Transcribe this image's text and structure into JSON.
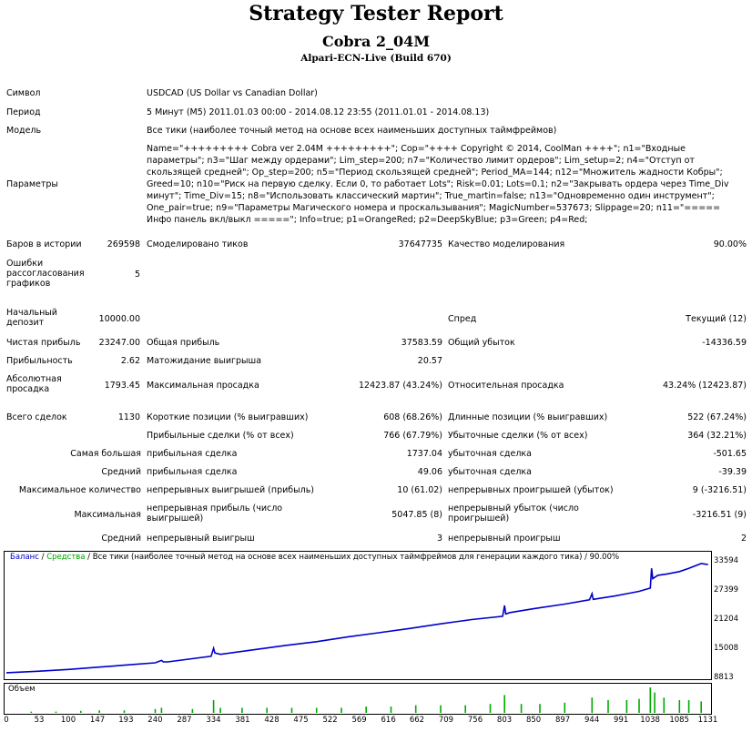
{
  "report": {
    "title": "Strategy Tester Report",
    "subtitle": "Cobra 2_04M",
    "build": "Alpari-ECN-Live (Build 670)"
  },
  "fields": {
    "symbol_label": "Символ",
    "symbol_value": "USDCAD (US Dollar vs Canadian Dollar)",
    "period_label": "Период",
    "period_value": "5 Минут (M5) 2011.01.03 00:00 - 2014.08.12 23:55 (2011.01.01 - 2014.08.13)",
    "model_label": "Модель",
    "model_value": "Все тики (наиболее точный метод на основе всех наименьших доступных таймфреймов)",
    "params_label": "Параметры",
    "params_value": "Name=\"+++++++++ Cobra ver 2.04M +++++++++\"; Cop=\"++++ Copyright © 2014, CoolMan ++++\"; n1=\"Входные параметры\"; n3=\"Шаг между ордерами\"; Lim_step=200; n7=\"Количество лимит ордеров\"; Lim_setup=2; n4=\"Отступ от скользящей средней\"; Op_step=200; n5=\"Период скользящей средней\"; Period_MA=144; n12=\"Множитель жадности Кобры\"; Greed=10; n10=\"Риск на первую сделку. Если 0, то работает Lots\"; Risk=0.01; Lots=0.1; n2=\"Закрывать ордера через Time_Div минут\"; Time_Div=15; n8=\"Использовать классический мартин\"; True_martin=false; n13=\"Одновременно один инструмент\"; One_pair=true; n9=\"Параметры Магического номера и проскальзывания\"; MagicNumber=537673; Slippage=20; n11=\"===== Инфо панель вкл/выкл =====\"; Info=true; p1=OrangeRed; p2=DeepSkyBlue; p3=Green; p4=Red;"
  },
  "stats": {
    "bars_label": "Баров в истории",
    "bars_value": "269598",
    "ticks_label": "Смоделировано тиков",
    "ticks_value": "37647735",
    "quality_label": "Качество моделирования",
    "quality_value": "90.00%",
    "errors_label": "Ошибки рассогласования графиков",
    "errors_value": "5",
    "deposit_label": "Начальный депозит",
    "deposit_value": "10000.00",
    "spread_label": "Спред",
    "spread_value": "Текущий (12)",
    "netprofit_label": "Чистая прибыль",
    "netprofit_value": "23247.00",
    "grossprofit_label": "Общая прибыль",
    "grossprofit_value": "37583.59",
    "grossloss_label": "Общий убыток",
    "grossloss_value": "-14336.59",
    "pf_label": "Прибыльность",
    "pf_value": "2.62",
    "payoff_label": "Матожидание выигрыша",
    "payoff_value": "20.57",
    "absdd_label": "Абсолютная просадка",
    "absdd_value": "1793.45",
    "maxdd_label": "Максимальная просадка",
    "maxdd_value": "12423.87 (43.24%)",
    "reldd_label": "Относительная просадка",
    "reldd_value": "43.24% (12423.87)",
    "trades_label": "Всего сделок",
    "trades_value": "1130",
    "short_label": "Короткие позиции (% выигравших)",
    "short_value": "608 (68.26%)",
    "long_label": "Длинные позиции (% выигравших)",
    "long_value": "522 (67.24%)",
    "profittrades_label": "Прибыльные сделки (% от всех)",
    "profittrades_value": "766 (67.79%)",
    "losstrades_label": "Убыточные сделки (% от всех)",
    "losstrades_value": "364 (32.21%)",
    "largest_label": "Самая большая",
    "largest_profit_label": "прибыльная сделка",
    "largest_profit_value": "1737.04",
    "largest_loss_label": "убыточная сделка",
    "largest_loss_value": "-501.65",
    "average_label": "Средний",
    "average_profit_label": "прибыльная сделка",
    "average_profit_value": "49.06",
    "average_loss_label": "убыточная сделка",
    "average_loss_value": "-39.39",
    "maxcount_label": "Максимальное количество",
    "maxcons_wins_label": "непрерывных выигрышей (прибыль)",
    "maxcons_wins_value": "10 (61.02)",
    "maxcons_losses_label": "непрерывных проигрышей (убыток)",
    "maxcons_losses_value": "9 (-3216.51)",
    "maximal_label": "Максимальная",
    "maxcons_profit_label": "непрерывная прибыль (число выигрышей)",
    "maxcons_profit_value": "5047.85 (8)",
    "maxcons_loss_label": "непрерывный убыток (число проигрышей)",
    "maxcons_loss_value": "-3216.51 (9)",
    "avgcons_label": "Средний",
    "avgcons_wins_label": "непрерывный выигрыш",
    "avgcons_wins_value": "3",
    "avgcons_losses_label": "непрерывный проигрыш",
    "avgcons_losses_value": "2"
  },
  "chart": {
    "legend_balance": "Баланс",
    "legend_sep1": " / ",
    "legend_equity": "Средства",
    "legend_rest": " / Все тики (наиболее точный метод на основе всех наименьших доступных таймфреймов для генерации каждого тика) / 90.00%",
    "volume_label": "Объем",
    "colors": {
      "balance": "#0000cc",
      "equity": "#00a000",
      "volume": "#00aa00"
    }
  },
  "chart_data": {
    "type": "line",
    "title": "",
    "xlabel": "",
    "ylabel": "",
    "ylim": [
      8813,
      33594
    ],
    "xlim": [
      0,
      1130
    ],
    "yticks": [
      33594,
      27399,
      21204,
      15008,
      8813
    ],
    "xticks": [
      0,
      53,
      100,
      147,
      193,
      240,
      287,
      334,
      381,
      428,
      475,
      522,
      569,
      616,
      662,
      709,
      756,
      803,
      850,
      897,
      944,
      991,
      1038,
      1085,
      1131
    ],
    "series": [
      {
        "name": "Баланс",
        "x": [
          0,
          50,
          100,
          150,
          200,
          240,
          250,
          253,
          260,
          330,
          334,
          336,
          345,
          400,
          450,
          500,
          550,
          600,
          650,
          700,
          750,
          800,
          803,
          805,
          812,
          850,
          900,
          940,
          944,
          946,
          955,
          980,
          1000,
          1020,
          1038,
          1040,
          1042,
          1050,
          1065,
          1085,
          1100,
          1120,
          1131
        ],
        "y": [
          10000,
          10300,
          10700,
          11200,
          11700,
          12100,
          12600,
          12300,
          12300,
          13500,
          15200,
          14200,
          13900,
          14900,
          15800,
          16600,
          17600,
          18500,
          19400,
          20400,
          21300,
          22000,
          24300,
          22500,
          22800,
          23600,
          24600,
          25500,
          26800,
          25600,
          25800,
          26300,
          26800,
          27300,
          28000,
          32200,
          30000,
          30700,
          31000,
          31500,
          32200,
          33200,
          33000
        ]
      }
    ],
    "volume": {
      "name": "Объем",
      "x": [
        40,
        80,
        120,
        150,
        190,
        240,
        250,
        300,
        334,
        345,
        380,
        420,
        460,
        500,
        540,
        580,
        620,
        660,
        700,
        740,
        780,
        803,
        830,
        860,
        900,
        944,
        970,
        1000,
        1020,
        1038,
        1045,
        1060,
        1085,
        1100,
        1120
      ],
      "values": [
        0.05,
        0.05,
        0.08,
        0.1,
        0.1,
        0.15,
        0.2,
        0.15,
        0.5,
        0.2,
        0.2,
        0.2,
        0.2,
        0.2,
        0.2,
        0.25,
        0.25,
        0.3,
        0.3,
        0.3,
        0.35,
        0.7,
        0.35,
        0.35,
        0.4,
        0.6,
        0.5,
        0.5,
        0.55,
        1.0,
        0.8,
        0.6,
        0.5,
        0.5,
        0.45
      ]
    }
  }
}
